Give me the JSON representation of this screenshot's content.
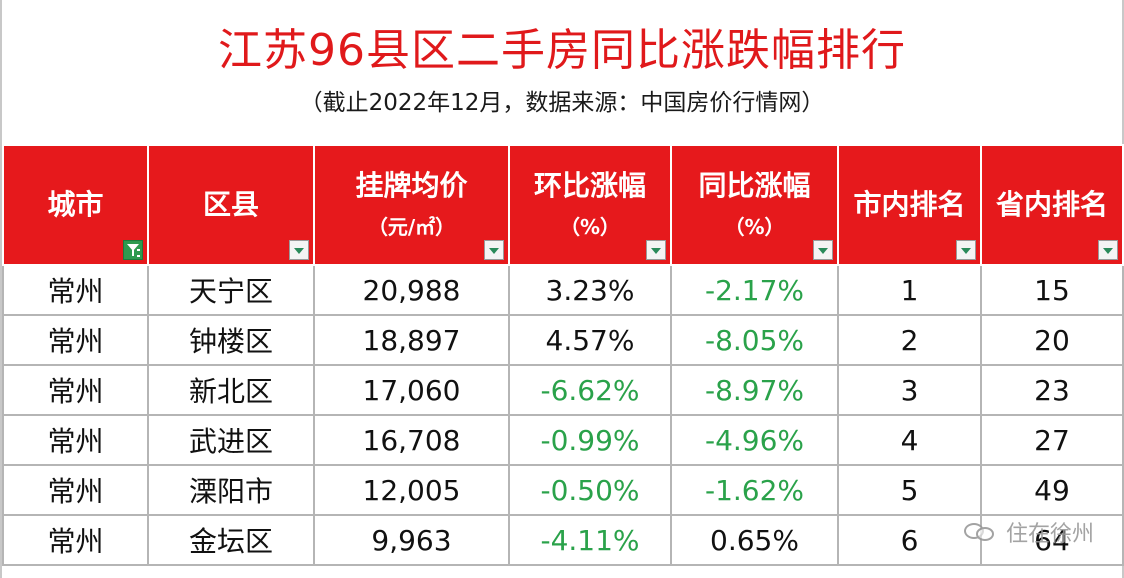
{
  "title": "江苏96县区二手房同比涨跌幅排行",
  "subtitle": "（截止2022年12月，数据来源：中国房价行情网）",
  "colors": {
    "header_bg": "#e6191c",
    "title_red": "#e0191b",
    "negative_green": "#2aa24a"
  },
  "headers": [
    {
      "main": "城市",
      "sub": "",
      "filter": "active-filter-icon"
    },
    {
      "main": "区县",
      "sub": "",
      "filter": "dropdown-arrow-icon"
    },
    {
      "main": "挂牌均价",
      "sub": "（元/㎡）",
      "filter": "dropdown-arrow-icon"
    },
    {
      "main": "环比涨幅",
      "sub": "（%）",
      "filter": "dropdown-arrow-icon"
    },
    {
      "main": "同比涨幅",
      "sub": "（%）",
      "filter": "dropdown-arrow-icon"
    },
    {
      "main": "市内排名",
      "sub": "",
      "filter": "dropdown-arrow-icon"
    },
    {
      "main": "省内排名",
      "sub": "",
      "filter": "dropdown-arrow-icon"
    }
  ],
  "rows": [
    {
      "city": "常州",
      "district": "天宁区",
      "price": "20,988",
      "mom": "3.23%",
      "yoy": "-2.17%",
      "city_rank": "1",
      "prov_rank": "15",
      "mom_neg": false,
      "yoy_neg": true
    },
    {
      "city": "常州",
      "district": "钟楼区",
      "price": "18,897",
      "mom": "4.57%",
      "yoy": "-8.05%",
      "city_rank": "2",
      "prov_rank": "20",
      "mom_neg": false,
      "yoy_neg": true
    },
    {
      "city": "常州",
      "district": "新北区",
      "price": "17,060",
      "mom": "-6.62%",
      "yoy": "-8.97%",
      "city_rank": "3",
      "prov_rank": "23",
      "mom_neg": true,
      "yoy_neg": true
    },
    {
      "city": "常州",
      "district": "武进区",
      "price": "16,708",
      "mom": "-0.99%",
      "yoy": "-4.96%",
      "city_rank": "4",
      "prov_rank": "27",
      "mom_neg": true,
      "yoy_neg": true
    },
    {
      "city": "常州",
      "district": "溧阳市",
      "price": "12,005",
      "mom": "-0.50%",
      "yoy": "-1.62%",
      "city_rank": "5",
      "prov_rank": "49",
      "mom_neg": true,
      "yoy_neg": true
    },
    {
      "city": "常州",
      "district": "金坛区",
      "price": "9,963",
      "mom": "-4.11%",
      "yoy": "0.65%",
      "city_rank": "6",
      "prov_rank": "64",
      "mom_neg": true,
      "yoy_neg": false
    }
  ],
  "watermark": {
    "text": "住在徐州",
    "icon": "wechat-icon"
  }
}
